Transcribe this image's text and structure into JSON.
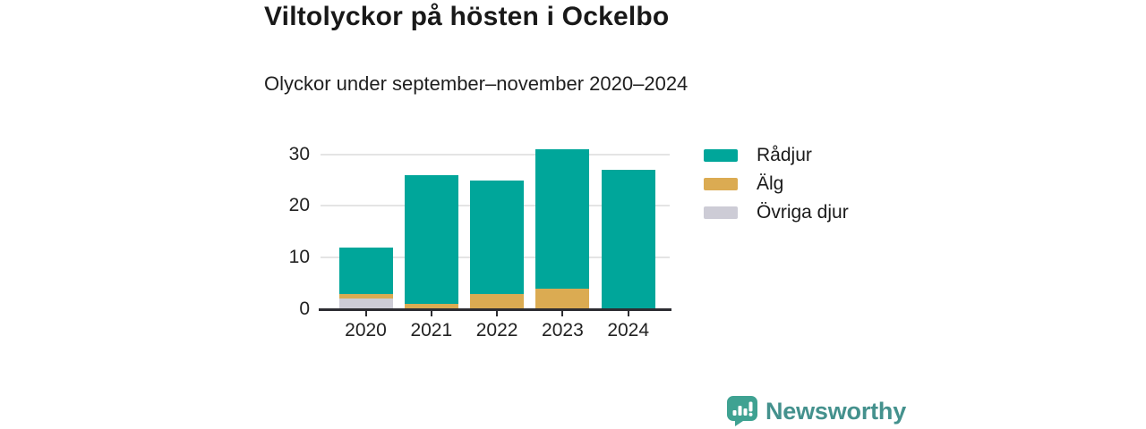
{
  "header": {
    "title": "Viltolyckor på hösten i Ockelbo",
    "subtitle": "Olyckor under september–november 2020–2024"
  },
  "chart_data": {
    "type": "bar",
    "stacked": true,
    "title": "Viltolyckor på hösten i Ockelbo",
    "subtitle": "Olyckor under september–november 2020–2024",
    "categories": [
      "2020",
      "2021",
      "2022",
      "2023",
      "2024"
    ],
    "series": [
      {
        "name": "Rådjur",
        "color": "#00a69a",
        "values": [
          9,
          25,
          22,
          27,
          27
        ]
      },
      {
        "name": "Älg",
        "color": "#dbab52",
        "values": [
          1,
          1,
          3,
          4,
          0
        ]
      },
      {
        "name": "Övriga djur",
        "color": "#cdccd6",
        "values": [
          2,
          0,
          0,
          0,
          0
        ]
      }
    ],
    "stack_order_bottom_to_top": [
      "Övriga djur",
      "Älg",
      "Rådjur"
    ],
    "totals": [
      12,
      26,
      25,
      31,
      27
    ],
    "y_ticks": [
      0,
      10,
      20,
      30
    ],
    "ylim": [
      0,
      34
    ],
    "xlabel": "",
    "ylabel": "",
    "grid": true,
    "legend_position": "right"
  },
  "colors": {
    "accent_teal": "#00a69a",
    "accent_gold": "#dbab52",
    "accent_gray": "#cdccd6",
    "axis_line": "#2d2d32",
    "gridline": "#e4e4e4",
    "brand_teal": "#44918d",
    "brand_icon_teal": "#3fa292"
  },
  "footer": {
    "brand": "Newsworthy"
  }
}
